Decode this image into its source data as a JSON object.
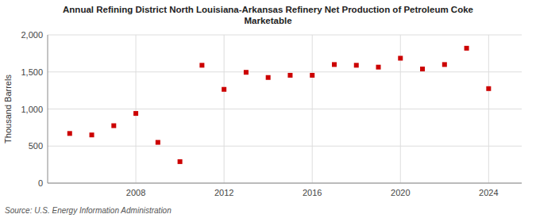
{
  "chart_data": {
    "type": "scatter",
    "title": "Annual Refining District North Louisiana-Arkansas Refinery Net Production of Petroleum Coke\nMarketable",
    "ylabel": "Thousand Barrels",
    "source": "Source: U.S. Energy Information Administration",
    "x": [
      2005,
      2006,
      2007,
      2008,
      2009,
      2010,
      2011,
      2012,
      2013,
      2014,
      2015,
      2016,
      2017,
      2018,
      2019,
      2020,
      2021,
      2022,
      2023,
      2024
    ],
    "values": [
      670,
      650,
      775,
      940,
      550,
      290,
      1590,
      1265,
      1495,
      1425,
      1455,
      1455,
      1600,
      1590,
      1565,
      1685,
      1540,
      1600,
      1820,
      1275
    ],
    "color": "#cc0000",
    "marker": "square",
    "grid": true,
    "xlim": [
      2004.0,
      2025.5
    ],
    "xticks": [
      2008,
      2012,
      2016,
      2020,
      2024
    ],
    "ylim": [
      0,
      2000
    ],
    "yticks": [
      0,
      500,
      {
        "value": 1000,
        "label": "1,000"
      },
      {
        "value": 1500,
        "label": "1,500"
      },
      {
        "value": 2000,
        "label": "2,000"
      }
    ]
  }
}
